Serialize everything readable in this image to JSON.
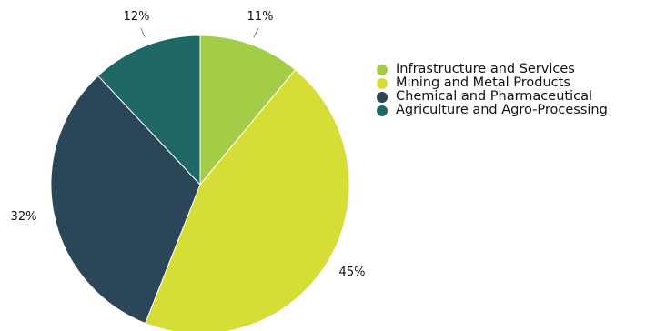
{
  "chart_data": {
    "type": "pie",
    "start_angle_deg": 0,
    "direction": "clockwise",
    "legend_position": "right",
    "slices": [
      {
        "name": "Infrastructure and Services",
        "value": 11,
        "label": "11%",
        "color": "#a3cd46"
      },
      {
        "name": "Mining and Metal Products",
        "value": 45,
        "label": "45%",
        "color": "#d6dd36"
      },
      {
        "name": "Chemical and Pharmaceutical",
        "value": 32,
        "label": "32%",
        "color": "#2b4658"
      },
      {
        "name": "Agriculture and Agro-Processing",
        "value": 12,
        "label": "12%",
        "color": "#1f6866"
      }
    ]
  }
}
